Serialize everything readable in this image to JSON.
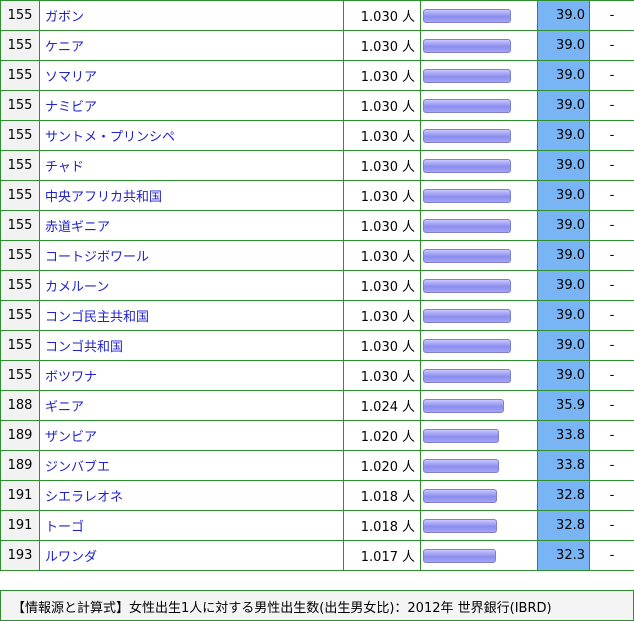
{
  "bar_max_score": 39.0,
  "rows": [
    {
      "rank": "155",
      "country": "ガボン",
      "value": "1.030",
      "unit": "人",
      "score": "39.0",
      "extra": "-"
    },
    {
      "rank": "155",
      "country": "ケニア",
      "value": "1.030",
      "unit": "人",
      "score": "39.0",
      "extra": "-"
    },
    {
      "rank": "155",
      "country": "ソマリア",
      "value": "1.030",
      "unit": "人",
      "score": "39.0",
      "extra": "-"
    },
    {
      "rank": "155",
      "country": "ナミビア",
      "value": "1.030",
      "unit": "人",
      "score": "39.0",
      "extra": "-"
    },
    {
      "rank": "155",
      "country": "サントメ・プリンシペ",
      "value": "1.030",
      "unit": "人",
      "score": "39.0",
      "extra": "-"
    },
    {
      "rank": "155",
      "country": "チャド",
      "value": "1.030",
      "unit": "人",
      "score": "39.0",
      "extra": "-"
    },
    {
      "rank": "155",
      "country": "中央アフリカ共和国",
      "value": "1.030",
      "unit": "人",
      "score": "39.0",
      "extra": "-"
    },
    {
      "rank": "155",
      "country": "赤道ギニア",
      "value": "1.030",
      "unit": "人",
      "score": "39.0",
      "extra": "-"
    },
    {
      "rank": "155",
      "country": "コートジボワール",
      "value": "1.030",
      "unit": "人",
      "score": "39.0",
      "extra": "-"
    },
    {
      "rank": "155",
      "country": "カメルーン",
      "value": "1.030",
      "unit": "人",
      "score": "39.0",
      "extra": "-"
    },
    {
      "rank": "155",
      "country": "コンゴ民主共和国",
      "value": "1.030",
      "unit": "人",
      "score": "39.0",
      "extra": "-"
    },
    {
      "rank": "155",
      "country": "コンゴ共和国",
      "value": "1.030",
      "unit": "人",
      "score": "39.0",
      "extra": "-"
    },
    {
      "rank": "155",
      "country": "ボツワナ",
      "value": "1.030",
      "unit": "人",
      "score": "39.0",
      "extra": "-"
    },
    {
      "rank": "188",
      "country": "ギニア",
      "value": "1.024",
      "unit": "人",
      "score": "35.9",
      "extra": "-"
    },
    {
      "rank": "189",
      "country": "ザンビア",
      "value": "1.020",
      "unit": "人",
      "score": "33.8",
      "extra": "-"
    },
    {
      "rank": "189",
      "country": "ジンバブエ",
      "value": "1.020",
      "unit": "人",
      "score": "33.8",
      "extra": "-"
    },
    {
      "rank": "191",
      "country": "シエラレオネ",
      "value": "1.018",
      "unit": "人",
      "score": "32.8",
      "extra": "-"
    },
    {
      "rank": "191",
      "country": "トーゴ",
      "value": "1.018",
      "unit": "人",
      "score": "32.8",
      "extra": "-"
    },
    {
      "rank": "193",
      "country": "ルワンダ",
      "value": "1.017",
      "unit": "人",
      "score": "32.3",
      "extra": "-"
    }
  ],
  "footer": {
    "text": "【情報源と計算式】女性出生1人に対する男性出生数(出生男女比)：2012年 世界銀行(IBRD)"
  }
}
